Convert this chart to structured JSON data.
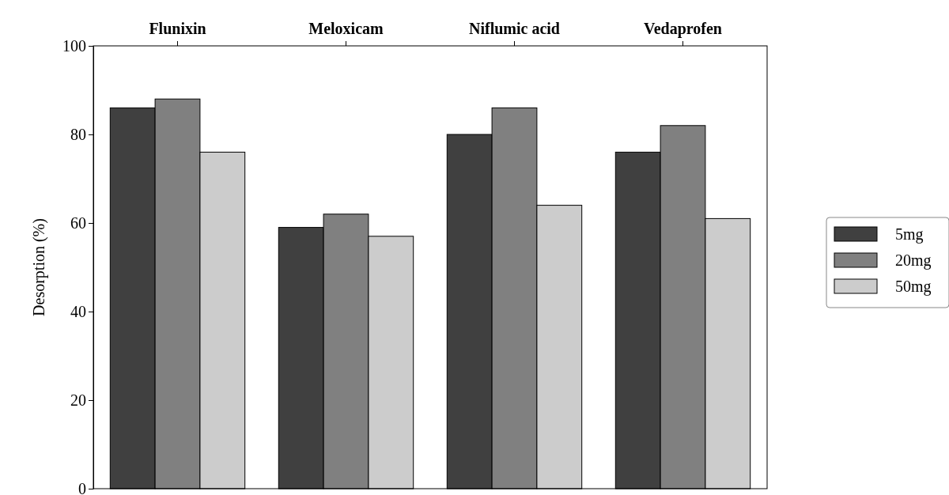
{
  "chart_data": {
    "type": "bar",
    "ylabel": "Desorption (%)",
    "categories": [
      "Flunixin",
      "Meloxicam",
      "Niflumic acid",
      "Vedaprofen"
    ],
    "series": [
      {
        "name": "5mg",
        "color": "#404040",
        "values": [
          86,
          59,
          80,
          76
        ]
      },
      {
        "name": "20mg",
        "color": "#808080",
        "values": [
          88,
          62,
          86,
          82
        ]
      },
      {
        "name": "50mg",
        "color": "#cccccc",
        "values": [
          76,
          57,
          64,
          61
        ]
      }
    ],
    "ylim": [
      0,
      100
    ],
    "yticks": [
      0,
      20,
      40,
      60,
      80,
      100
    ],
    "legend": "right",
    "grid": false
  }
}
